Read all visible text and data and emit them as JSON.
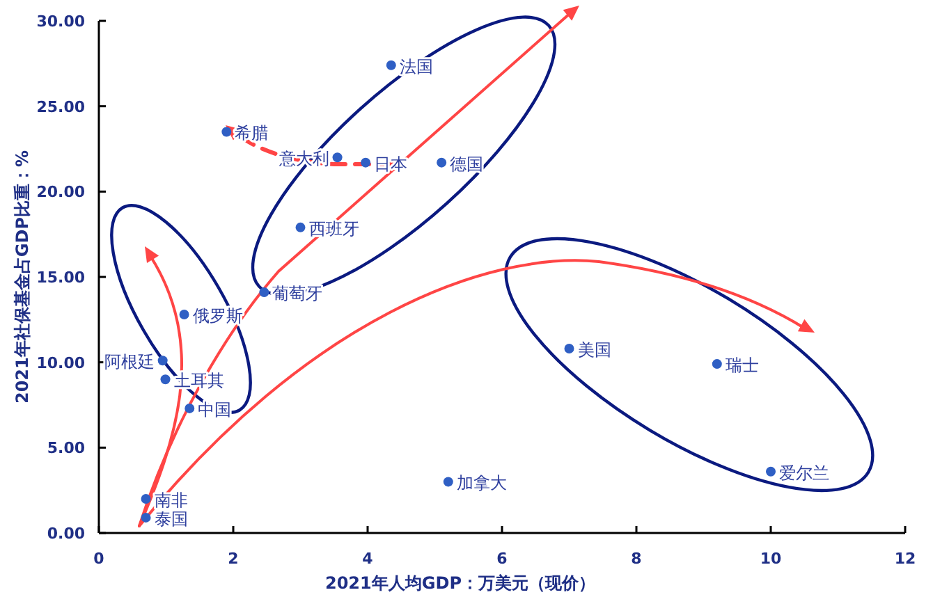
{
  "chart_data": {
    "type": "scatter",
    "xlabel": "2021年人均GDP：万美元（现价）",
    "ylabel": "2021年社保基金占GDP比重：%",
    "x": [
      4.35,
      1.9,
      3.55,
      3.97,
      5.1,
      3.0,
      2.46,
      1.27,
      0.95,
      0.99,
      1.35,
      0.7,
      0.7,
      5.2,
      7.0,
      9.2,
      10.0
    ],
    "series": [
      {
        "color": "#2f5fc4",
        "values": [
          27.4,
          23.5,
          22.0,
          21.7,
          21.7,
          17.9,
          14.1,
          12.8,
          10.1,
          9.0,
          7.3,
          2.0,
          0.9,
          3.0,
          10.8,
          9.9,
          3.6
        ]
      }
    ],
    "marker": "circle",
    "grid": false,
    "xlim": [
      0,
      12
    ],
    "xticks": [
      0,
      2,
      4,
      6,
      8,
      10,
      12
    ],
    "ylim": [
      0,
      30
    ],
    "yticks": [
      {
        "value": 0,
        "label": "0.00"
      },
      {
        "value": 5,
        "label": "5.00"
      },
      {
        "value": 10,
        "label": "10.00"
      },
      {
        "value": 15,
        "label": "15.00"
      },
      {
        "value": 20,
        "label": "20.00"
      },
      {
        "value": 25,
        "label": "25.00"
      },
      {
        "value": 30,
        "label": "30.00"
      }
    ],
    "annotations": [
      {
        "text": "法国",
        "x": 4.35,
        "y": 27.4
      },
      {
        "text": "希腊",
        "x": 1.9,
        "y": 23.5
      },
      {
        "text": "意大利",
        "x": 3.55,
        "y": 22.0
      },
      {
        "text": "日本",
        "x": 3.97,
        "y": 21.7
      },
      {
        "text": "德国",
        "x": 5.1,
        "y": 21.7
      },
      {
        "text": "西班牙",
        "x": 3.0,
        "y": 17.9
      },
      {
        "text": "葡萄牙",
        "x": 2.46,
        "y": 14.1
      },
      {
        "text": "俄罗斯",
        "x": 1.27,
        "y": 12.8
      },
      {
        "text": "阿根廷",
        "x": 0.95,
        "y": 10.1
      },
      {
        "text": "土耳其",
        "x": 0.99,
        "y": 9.0
      },
      {
        "text": "中国",
        "x": 1.35,
        "y": 7.3
      },
      {
        "text": "南非",
        "x": 0.7,
        "y": 2.0
      },
      {
        "text": "泰国",
        "x": 0.7,
        "y": 0.9
      },
      {
        "text": "加拿大",
        "x": 5.2,
        "y": 3.0
      },
      {
        "text": "美国",
        "x": 7.0,
        "y": 10.8
      },
      {
        "text": "瑞士",
        "x": 9.2,
        "y": 9.9
      },
      {
        "text": "爱尔兰",
        "x": 10.0,
        "y": 3.6
      }
    ]
  }
}
